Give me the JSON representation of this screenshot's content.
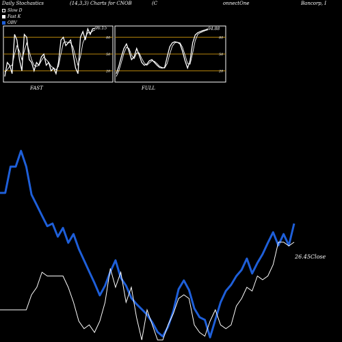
{
  "header": {
    "left": "Daily Stochastics",
    "middle": "(14,3,3) Charts for CNOB",
    "company_a": "(C",
    "company_b": "onnectOne",
    "company_c": "Bancorp, I"
  },
  "legend": [
    {
      "label": "Slow D",
      "color": "#000000",
      "border": "#ffffff"
    },
    {
      "label": "Fast K",
      "color": "#ffffff",
      "border": "#ffffff"
    },
    {
      "label": "OBV",
      "color": "#1e5fd9",
      "border": "#1e5fd9"
    }
  ],
  "colors": {
    "background": "#000000",
    "panel_border": "#ffffff",
    "grid": "#b8860b",
    "k_line": "#ffffff",
    "d_line": "#ffffff",
    "obv": "#1e5fd9",
    "price": "#ffffff"
  },
  "chart_data": [
    {
      "type": "line",
      "title": "FAST",
      "ylim": [
        0,
        100
      ],
      "gridlines": [
        20,
        50,
        80
      ],
      "tick_labels": [
        "80",
        "50",
        "20"
      ],
      "end_label": "96.15",
      "series": [
        {
          "name": "Fast K",
          "values": [
            10,
            35,
            30,
            15,
            85,
            75,
            40,
            20,
            85,
            80,
            40,
            35,
            20,
            35,
            30,
            45,
            50,
            30,
            35,
            20,
            25,
            15,
            35,
            75,
            80,
            65,
            70,
            75,
            50,
            25,
            15,
            80,
            90,
            75,
            95,
            85,
            95,
            96.15
          ]
        },
        {
          "name": "Slow D",
          "values": [
            18,
            22,
            28,
            30,
            50,
            65,
            55,
            40,
            55,
            70,
            55,
            40,
            30,
            28,
            30,
            38,
            45,
            40,
            35,
            28,
            25,
            22,
            28,
            50,
            70,
            72,
            70,
            70,
            62,
            45,
            30,
            45,
            70,
            80,
            88,
            88,
            91,
            93
          ]
        }
      ]
    },
    {
      "type": "line",
      "title": "FULL",
      "ylim": [
        0,
        100
      ],
      "gridlines": [
        20,
        50,
        80
      ],
      "tick_labels": [
        "80",
        "50",
        "20"
      ],
      "end_label": "94.88",
      "series": [
        {
          "name": "Fast K",
          "values": [
            15,
            28,
            45,
            60,
            68,
            55,
            40,
            45,
            60,
            48,
            35,
            30,
            32,
            38,
            40,
            35,
            30,
            26,
            25,
            26,
            45,
            63,
            70,
            72,
            71,
            68,
            55,
            38,
            25,
            38,
            70,
            84,
            88,
            90,
            92,
            93,
            94.88
          ]
        },
        {
          "name": "Slow D",
          "values": [
            10,
            20,
            35,
            52,
            62,
            60,
            48,
            42,
            52,
            52,
            42,
            34,
            30,
            34,
            38,
            37,
            33,
            28,
            26,
            25,
            33,
            50,
            64,
            70,
            71,
            70,
            62,
            48,
            33,
            32,
            52,
            74,
            85,
            88,
            90,
            92,
            93
          ]
        }
      ]
    },
    {
      "type": "line",
      "title": "",
      "close_label": "26.45Close",
      "series": [
        {
          "name": "OBV",
          "values": [
            100,
            100,
            130,
            130,
            148,
            130,
            98,
            86,
            74,
            62,
            65,
            50,
            60,
            43,
            53,
            36,
            23,
            10,
            -3,
            -17,
            -6,
            10,
            23,
            3,
            -6,
            -20,
            -27,
            -33,
            -39,
            -48,
            -59,
            -64,
            -53,
            -35,
            -10,
            0,
            -11,
            -32,
            -42,
            -45,
            -65,
            -45,
            -25,
            -12,
            -5,
            5,
            12,
            25,
            8,
            20,
            30,
            43,
            55,
            40,
            53,
            40,
            65
          ]
        },
        {
          "name": "Price",
          "values": [
            40,
            40,
            40,
            40,
            40,
            40,
            60,
            70,
            90,
            85,
            85,
            85,
            85,
            70,
            50,
            25,
            15,
            20,
            10,
            25,
            50,
            95,
            70,
            90,
            50,
            70,
            30,
            0,
            40,
            20,
            0,
            0,
            20,
            35,
            55,
            60,
            55,
            20,
            10,
            5,
            25,
            40,
            20,
            15,
            20,
            45,
            55,
            70,
            65,
            85,
            80,
            85,
            100,
            130,
            130,
            125,
            130
          ]
        }
      ]
    }
  ]
}
